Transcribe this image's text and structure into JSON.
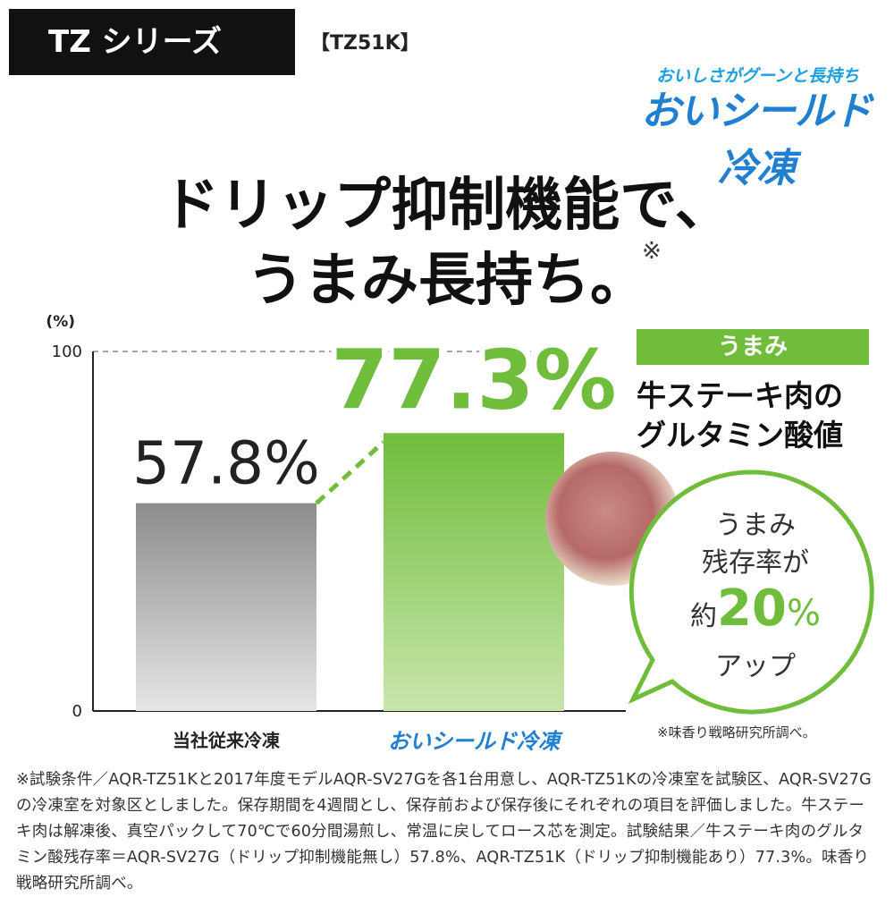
{
  "header": {
    "series": "TZ シリーズ",
    "model": "【TZ51K】",
    "brand_tagline": "おいしさがグーンと長持ち",
    "brand_logo": "おいシールド冷凍"
  },
  "headline": {
    "line1": "ドリップ抑制機能で、",
    "line2": "うまみ長持ち。",
    "note_mark": "※"
  },
  "chart_data": {
    "type": "bar",
    "categories": [
      "当社従来冷凍",
      "おいシールド冷凍"
    ],
    "values": [
      57.8,
      77.3
    ],
    "value_labels": [
      "57.8%",
      "77.3%"
    ],
    "ylabel": "(%)",
    "ylim": [
      0,
      100
    ],
    "yticks": [
      0,
      100
    ],
    "colors": [
      "#8a8a8a",
      "#6fbd3a"
    ]
  },
  "metric": {
    "tag": "うまみ",
    "line1": "牛ステーキ肉の",
    "line2": "グルタミン酸値"
  },
  "bubble": {
    "line1": "うまみ",
    "line2": "残存率が",
    "prefix": "約",
    "value": "20",
    "unit": "%",
    "line4": "アップ"
  },
  "source": "※味香り戦略研究所調べ。",
  "disclaimer": "※試験条件／AQR-TZ51Kと2017年度モデルAQR-SV27Gを各1台用意し、AQR-TZ51Kの冷凍室を試験区、AQR-SV27Gの冷凍室を対象区としました。保存期間を4週間とし、保存前および保存後にそれぞれの項目を評価しました。牛ステーキ肉は解凍後、真空パックして70℃で60分間湯煎し、常温に戻してロース芯を測定。試験結果／牛ステーキ肉のグルタミン酸残存率＝AQR-SV27G（ドリップ抑制機能無し）57.8%、AQR-TZ51K（ドリップ抑制機能あり）77.3%。味香り戦略研究所調べ。"
}
